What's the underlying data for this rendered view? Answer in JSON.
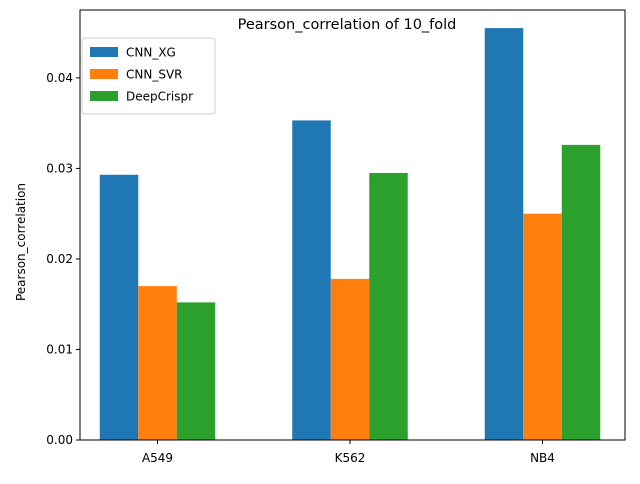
{
  "chart_data": {
    "type": "bar",
    "title": "Pearson_correlation of 10_fold",
    "xlabel": "",
    "ylabel": "Pearson_correlation",
    "categories": [
      "A549",
      "K562",
      "NB4"
    ],
    "series": [
      {
        "name": "CNN_XG",
        "color": "#1f77b4",
        "values": [
          0.0293,
          0.0353,
          0.0455
        ]
      },
      {
        "name": "CNN_SVR",
        "color": "#ff7f0e",
        "values": [
          0.017,
          0.0178,
          0.025
        ]
      },
      {
        "name": "DeepCrispr",
        "color": "#2ca02c",
        "values": [
          0.0152,
          0.0295,
          0.0326
        ]
      }
    ],
    "ylim": [
      0,
      0.0475
    ],
    "yticks": [
      0.0,
      0.01,
      0.02,
      0.03,
      0.04
    ],
    "ytick_labels": [
      "0.00",
      "0.01",
      "0.02",
      "0.03",
      "0.04"
    ],
    "legend_position": "top-left",
    "grid": false
  }
}
